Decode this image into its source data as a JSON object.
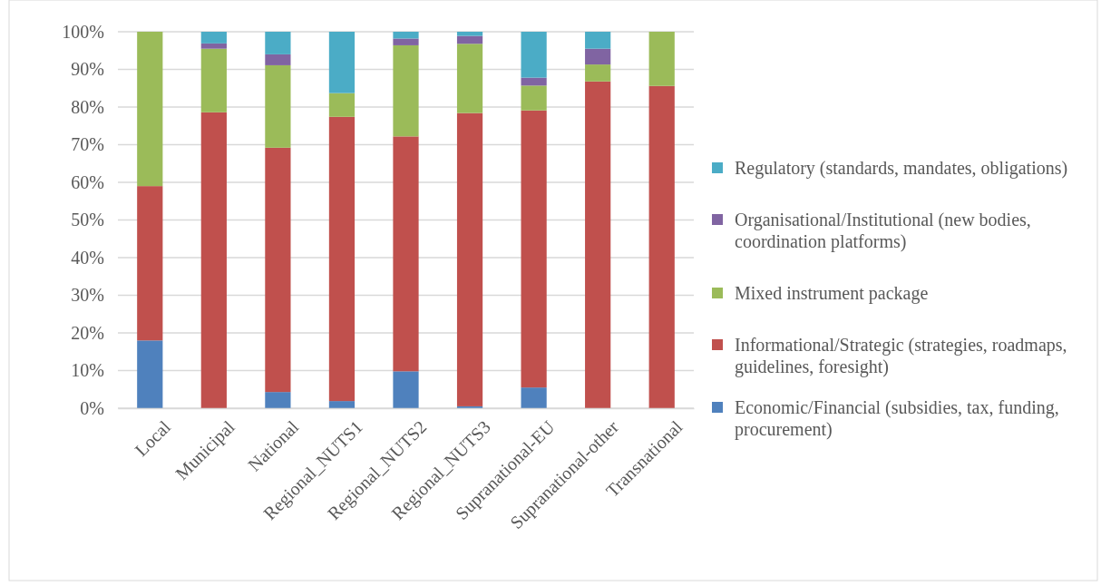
{
  "chart_data": {
    "type": "bar",
    "stacked": true,
    "categories": [
      "Local",
      "Municipal",
      "National",
      "Regional_NUTS1",
      "Regional_NUTS2",
      "Regional_NUTS3",
      "Supranational-EU",
      "Supranational-other",
      "Transnational"
    ],
    "series": [
      {
        "name": "Economic/Financial (subsidies, tax, funding, procurement)",
        "color": "#4f81bd",
        "values": [
          18.0,
          0,
          4.3,
          1.9,
          9.8,
          0.5,
          5.5,
          0,
          0
        ]
      },
      {
        "name": "Informational/Strategic (strategies, roadmaps, guidelines, foresight)",
        "color": "#c0504d",
        "values": [
          41.0,
          78.6,
          64.9,
          75.5,
          62.4,
          77.9,
          73.6,
          86.8,
          85.6
        ]
      },
      {
        "name": "Mixed instrument package",
        "color": "#9bbb59",
        "values": [
          41.0,
          16.9,
          21.9,
          6.3,
          24.2,
          18.4,
          6.6,
          4.5,
          14.4
        ]
      },
      {
        "name": "Organisational/Institutional (new bodies, coordination platforms)",
        "color": "#8064a2",
        "values": [
          0,
          1.4,
          2.9,
          0,
          1.8,
          2.1,
          2.1,
          4.2,
          0
        ]
      },
      {
        "name": "Regulatory (standards, mandates, obligations)",
        "color": "#4bacc6",
        "values": [
          0,
          3.1,
          6.0,
          16.3,
          1.8,
          1.1,
          12.2,
          4.5,
          0
        ]
      }
    ],
    "ylim": [
      0,
      100
    ],
    "yticks": [
      {
        "value": 0,
        "label": "0%"
      },
      {
        "value": 10,
        "label": "10%"
      },
      {
        "value": 20,
        "label": "20%"
      },
      {
        "value": 30,
        "label": "30%"
      },
      {
        "value": 40,
        "label": "40%"
      },
      {
        "value": 50,
        "label": "50%"
      },
      {
        "value": 60,
        "label": "60%"
      },
      {
        "value": 70,
        "label": "70%"
      },
      {
        "value": 80,
        "label": "80%"
      },
      {
        "value": 90,
        "label": "90%"
      },
      {
        "value": 100,
        "label": "100%"
      }
    ],
    "grid": "y",
    "legend": "right"
  }
}
